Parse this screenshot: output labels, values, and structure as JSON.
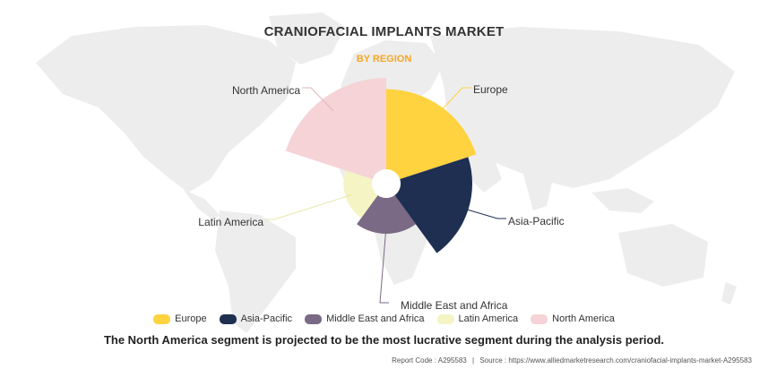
{
  "header": {
    "title": "CRANIOFACIAL IMPLANTS MARKET",
    "subtitle": "BY REGION"
  },
  "chart_data": {
    "type": "pie",
    "variant": "polar-area",
    "categories": [
      "Europe",
      "Asia-Pacific",
      "Middle East and Africa",
      "Latin America",
      "North America"
    ],
    "values": [
      20,
      16,
      4,
      2.5,
      26
    ],
    "colors": [
      "#FFD23F",
      "#1F2F52",
      "#7A6A85",
      "#F5F4C4",
      "#F5D3D6"
    ],
    "legend_position": "bottom"
  },
  "caption": "The North America segment is projected to be the most lucrative segment during the analysis period.",
  "footer": {
    "report_code": "Report Code : A295583",
    "source": "Source : https://www.alliedmarketresearch.com/craniofacial-implants-market-A295583"
  }
}
